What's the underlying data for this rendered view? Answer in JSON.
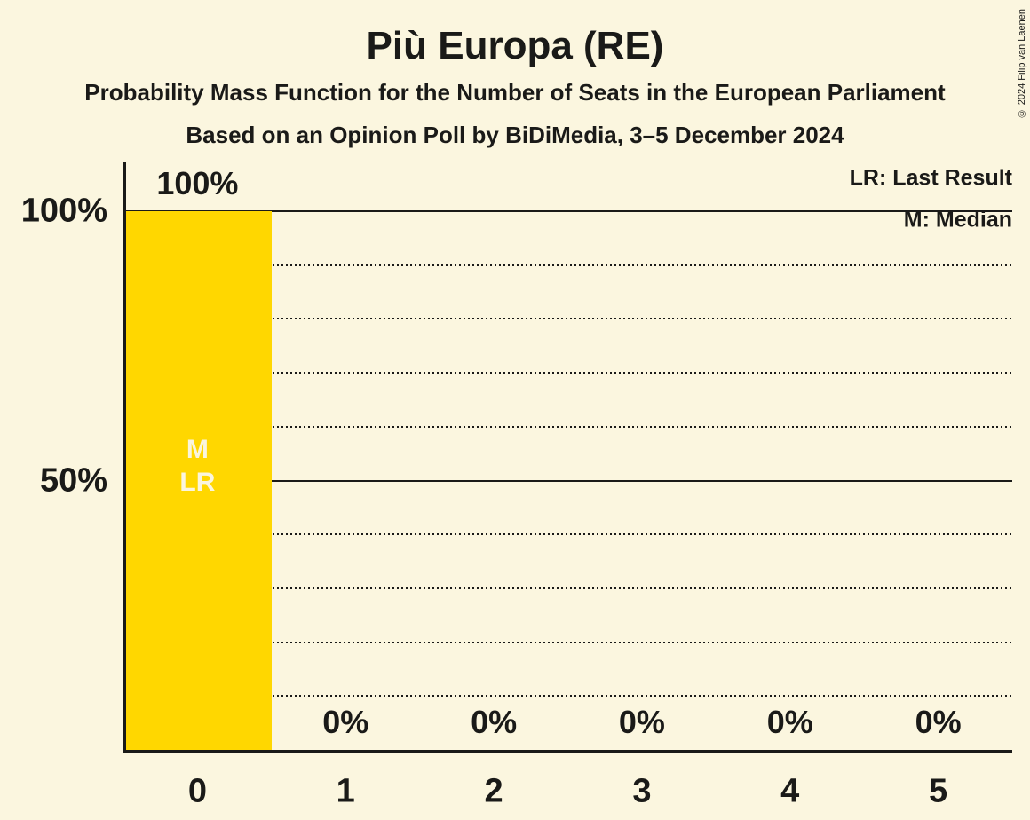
{
  "header": {
    "title": "Più Europa (RE)",
    "subtitle1": "Probability Mass Function for the Number of Seats in the European Parliament",
    "subtitle2": "Based on an Opinion Poll by BiDiMedia, 3–5 December 2024"
  },
  "copyright": "© 2024 Filip van Laenen",
  "legend": {
    "last_result": "LR: Last Result",
    "median": "M: Median"
  },
  "colors": {
    "background": "#FBF6DF",
    "bar": "#FFD700",
    "text": "#1A1A18",
    "bar_label": "#FAF5DE"
  },
  "chart_data": {
    "type": "bar",
    "title": "Più Europa (RE)",
    "categories": [
      "0",
      "1",
      "2",
      "3",
      "4",
      "5"
    ],
    "values": [
      100,
      0,
      0,
      0,
      0,
      0
    ],
    "value_labels": [
      "100%",
      "0%",
      "0%",
      "0%",
      "0%",
      "0%"
    ],
    "xlabel": "",
    "ylabel": "",
    "ylim": [
      0,
      100
    ],
    "y_ticks": [
      {
        "value": 100,
        "label": "100%"
      },
      {
        "value": 50,
        "label": "50%"
      }
    ],
    "gridlines": {
      "solid": [
        100,
        50
      ],
      "dotted": [
        90,
        80,
        70,
        60,
        40,
        30,
        20,
        10
      ]
    },
    "grid": "horizontal",
    "legend_position": "top-right",
    "annotations": [
      {
        "category": "0",
        "lines": [
          "M",
          "LR"
        ],
        "at_percent": 50
      }
    ]
  }
}
